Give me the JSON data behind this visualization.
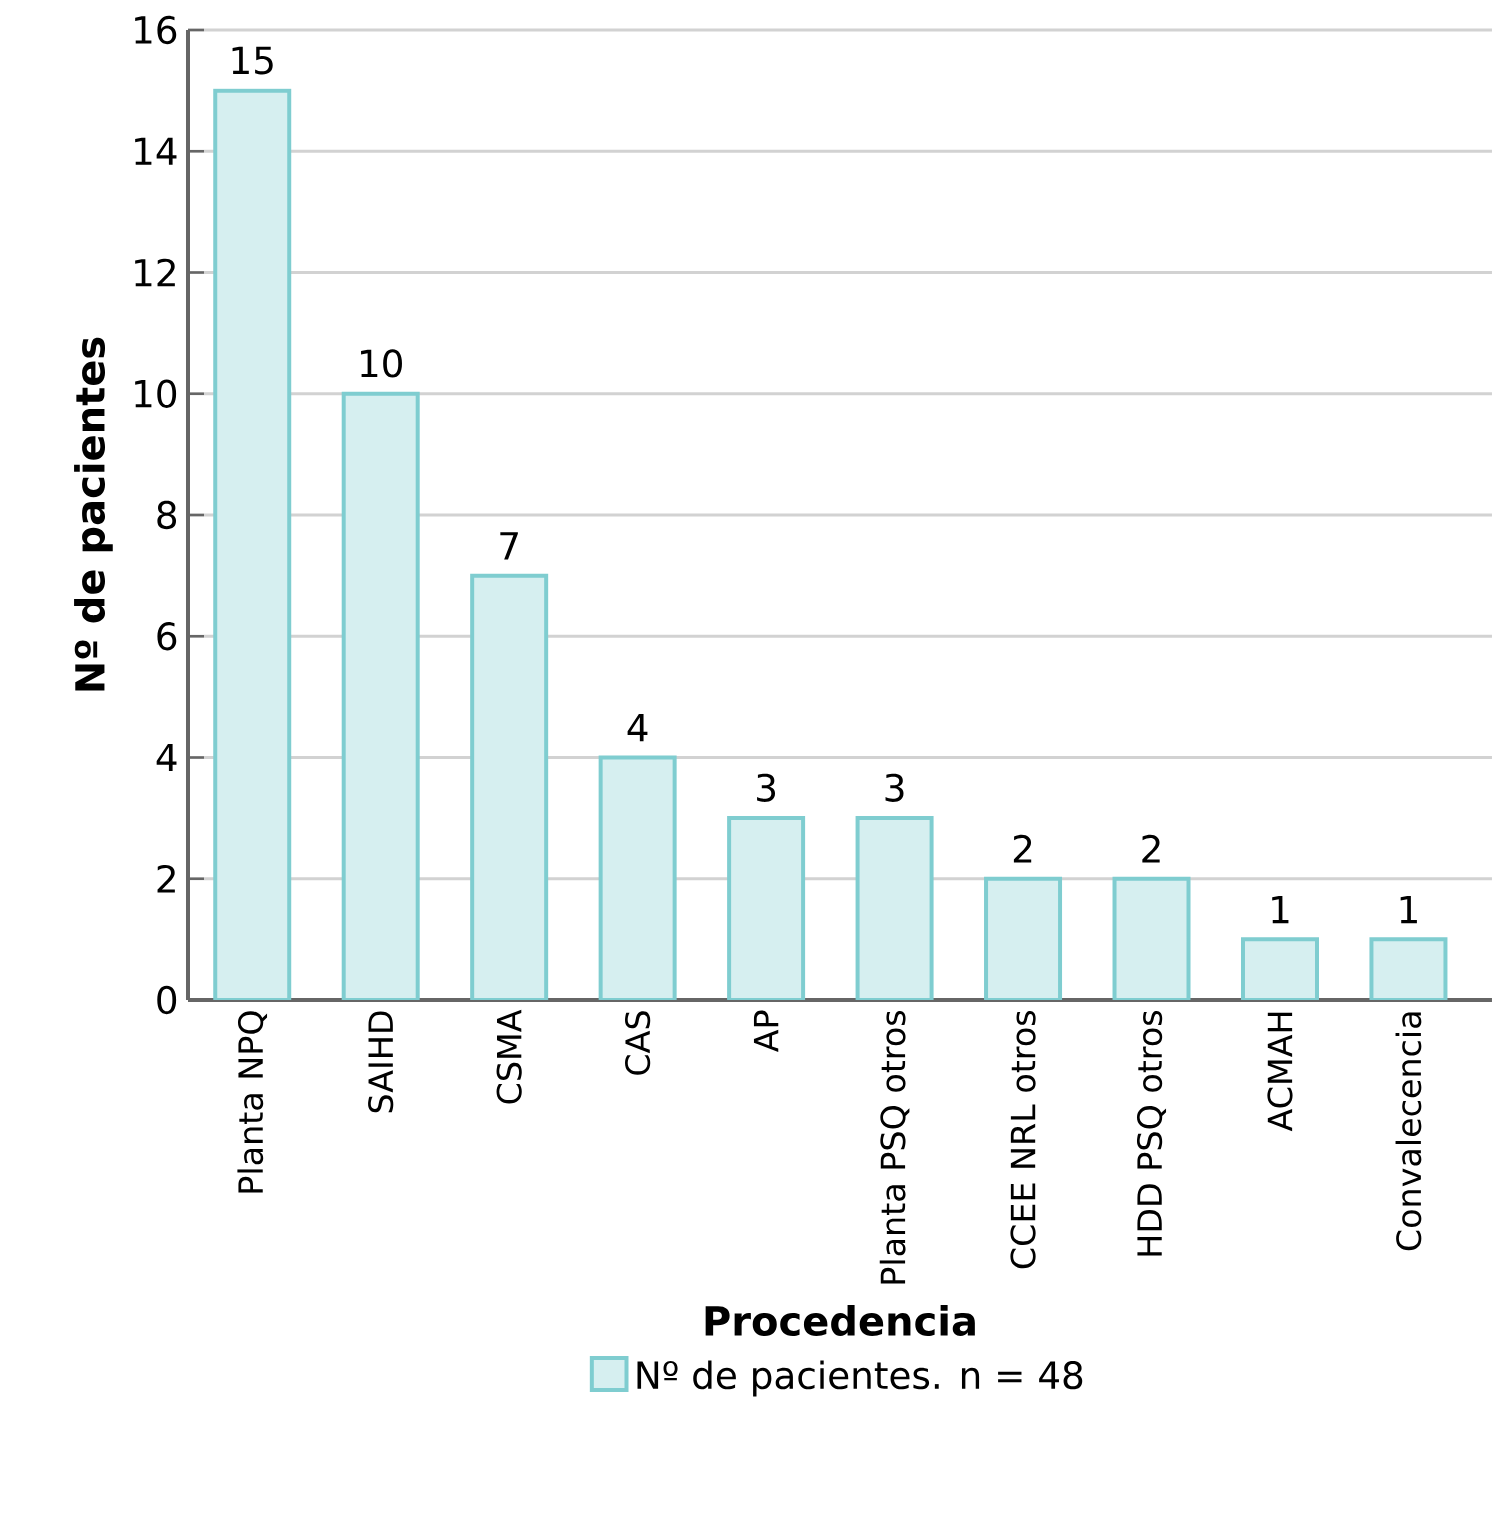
{
  "chart_data": {
    "type": "bar",
    "xlabel": "Procedencia",
    "ylabel": "Nº de pacientes",
    "categories": [
      "Planta NPQ",
      "SAIHD",
      "CSMA",
      "CAS",
      "AP",
      "Planta PSQ otros",
      "CCEE NRL otros",
      "HDD PSQ otros",
      "ACMAH",
      "Convalecencia"
    ],
    "series": [
      {
        "name": "Nº de pacientes. n = 48",
        "color": "#d6eff0",
        "values": [
          15,
          10,
          7,
          4,
          3,
          3,
          2,
          2,
          1,
          1
        ]
      }
    ],
    "ylim": [
      0,
      16
    ],
    "yticks": [
      0,
      2,
      4,
      6,
      8,
      10,
      12,
      14,
      16
    ],
    "grid": "y",
    "legend": "bottom",
    "data_labels": true
  }
}
